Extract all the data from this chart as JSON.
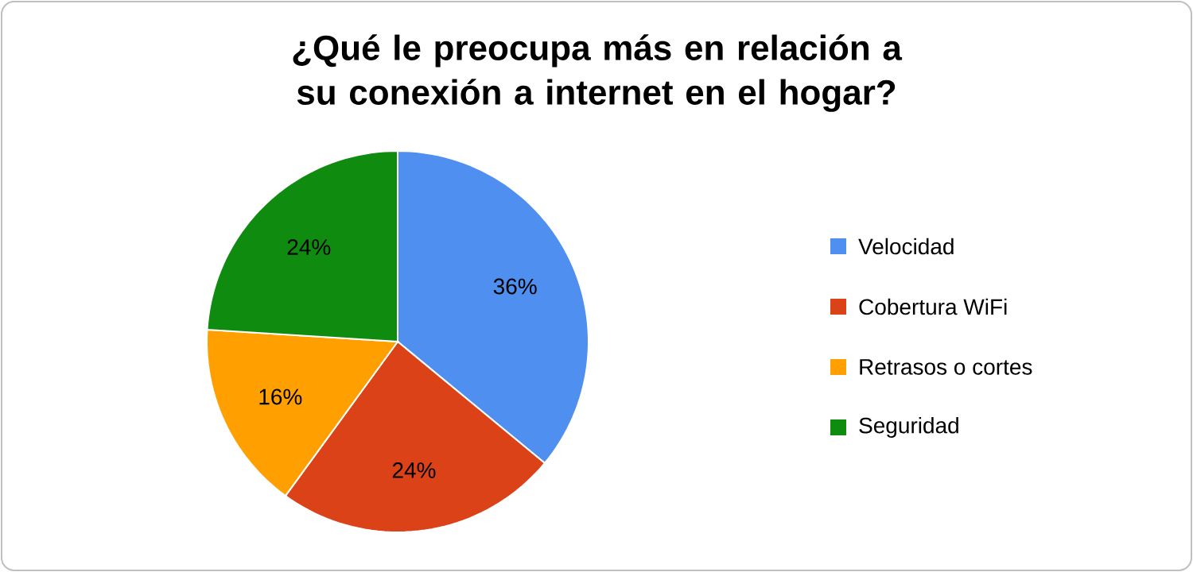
{
  "chart_data": {
    "type": "pie",
    "title": "¿Qué le preocupa más en relación a su conexión a internet en el hogar?",
    "categories": [
      "Velocidad",
      "Cobertura WiFi",
      "Retrasos o cortes",
      "Seguridad"
    ],
    "values": [
      36,
      24,
      16,
      24
    ],
    "colors": [
      "#4f8ff0",
      "#dc4218",
      "#ffa000",
      "#0f8c0f"
    ],
    "value_labels": [
      "36%",
      "24%",
      "16%",
      "24%"
    ],
    "legend": "right"
  }
}
